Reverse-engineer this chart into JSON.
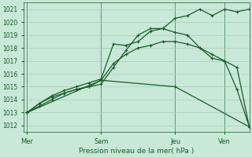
{
  "xlabel": "Pression niveau de la mer( hPa )",
  "ylim": [
    1011.5,
    1021.5
  ],
  "yticks": [
    1012,
    1013,
    1014,
    1015,
    1016,
    1017,
    1018,
    1019,
    1020,
    1021
  ],
  "bg_color": "#c8e8d8",
  "grid_color": "#a0c8b0",
  "line_color": "#1a5c2a",
  "day_labels": [
    "Mer",
    "Sam",
    "Jeu",
    "Ven"
  ],
  "day_positions": [
    0,
    24,
    48,
    64
  ],
  "xlim": [
    -1,
    72
  ],
  "vline_positions": [
    0,
    24,
    48,
    64
  ],
  "series": [
    {
      "x": [
        0,
        4,
        8,
        12,
        16,
        20,
        24,
        28,
        32,
        36,
        40,
        44,
        48,
        52,
        56,
        60,
        64,
        68,
        72
      ],
      "y": [
        1013.0,
        1013.7,
        1014.2,
        1014.5,
        1014.8,
        1015.0,
        1015.2,
        1016.5,
        1017.8,
        1019.0,
        1019.5,
        1019.5,
        1019.2,
        1019.0,
        1018.0,
        1017.2,
        1017.0,
        1014.8,
        1011.9
      ]
    },
    {
      "x": [
        0,
        4,
        8,
        12,
        16,
        20,
        24,
        28,
        32,
        36,
        40,
        44,
        48,
        52,
        56,
        60,
        64,
        68,
        72
      ],
      "y": [
        1013.0,
        1013.7,
        1014.3,
        1014.7,
        1015.0,
        1015.3,
        1015.6,
        1018.3,
        1018.2,
        1018.5,
        1019.3,
        1019.5,
        1020.3,
        1020.5,
        1021.0,
        1020.5,
        1021.0,
        1020.8,
        1021.0
      ]
    },
    {
      "x": [
        0,
        4,
        8,
        12,
        16,
        20,
        24,
        28,
        32,
        36,
        40,
        44,
        48,
        52,
        56,
        60,
        64,
        68,
        72
      ],
      "y": [
        1013.0,
        1013.5,
        1014.0,
        1014.5,
        1014.8,
        1015.0,
        1015.5,
        1016.8,
        1017.5,
        1018.0,
        1018.2,
        1018.5,
        1018.5,
        1018.3,
        1018.0,
        1017.5,
        1017.0,
        1016.5,
        1011.9
      ]
    },
    {
      "x": [
        0,
        24,
        48,
        72
      ],
      "y": [
        1013.0,
        1015.5,
        1015.0,
        1011.9
      ]
    }
  ],
  "figsize": [
    3.2,
    2.0
  ],
  "dpi": 100
}
